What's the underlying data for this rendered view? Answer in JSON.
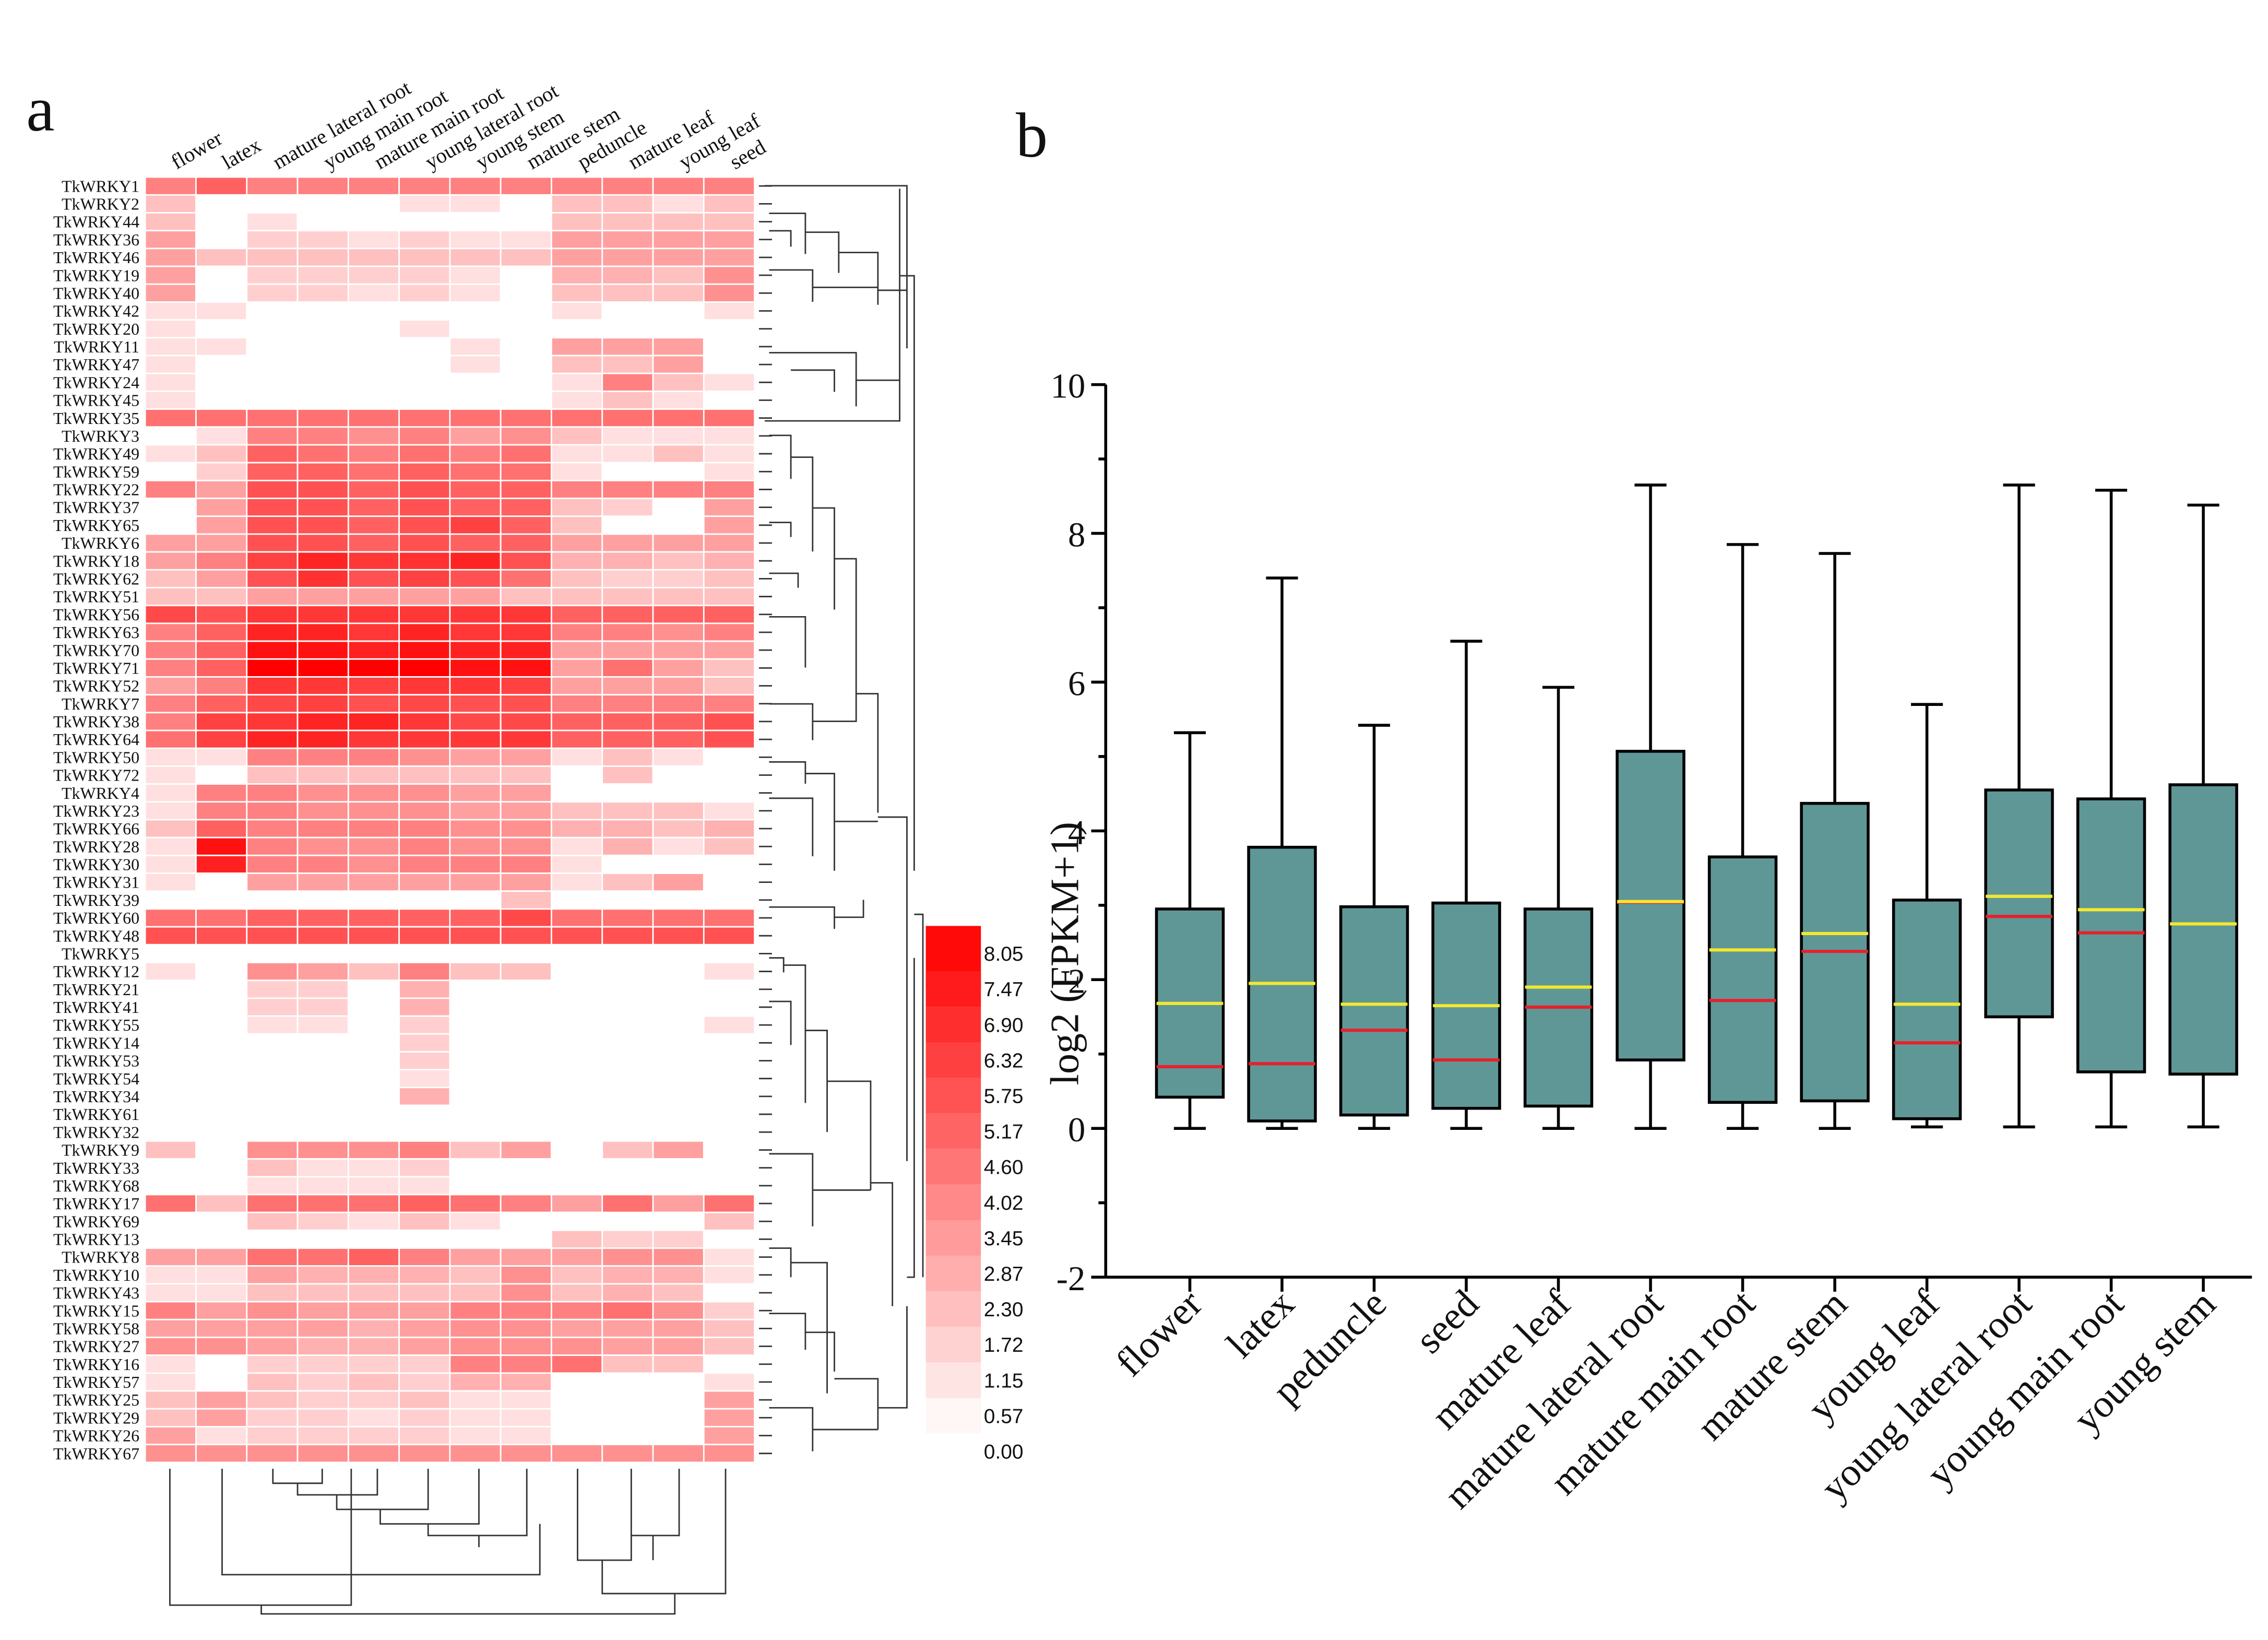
{
  "chart_data": [
    {
      "type": "heatmap",
      "panel_label": "a",
      "x": [
        "flower",
        "latex",
        "mature lateral root",
        "young main root",
        "mature main root",
        "young lateral root",
        "young stem",
        "mature stem",
        "peduncle",
        "mature leaf",
        "young leaf",
        "seed"
      ],
      "y": [
        "TkWRKY1",
        "TkWRKY2",
        "TkWRKY44",
        "TkWRKY36",
        "TkWRKY46",
        "TkWRKY19",
        "TkWRKY40",
        "TkWRKY42",
        "TkWRKY20",
        "TkWRKY11",
        "TkWRKY47",
        "TkWRKY24",
        "TkWRKY45",
        "TkWRKY35",
        "TkWRKY3",
        "TkWRKY49",
        "TkWRKY59",
        "TkWRKY22",
        "TkWRKY37",
        "TkWRKY65",
        "TkWRKY6",
        "TkWRKY18",
        "TkWRKY62",
        "TkWRKY51",
        "TkWRKY56",
        "TkWRKY63",
        "TkWRKY70",
        "TkWRKY71",
        "TkWRKY52",
        "TkWRKY7",
        "TkWRKY38",
        "TkWRKY64",
        "TkWRKY50",
        "TkWRKY72",
        "TkWRKY4",
        "TkWRKY23",
        "TkWRKY66",
        "TkWRKY28",
        "TkWRKY30",
        "TkWRKY31",
        "TkWRKY39",
        "TkWRKY60",
        "TkWRKY48",
        "TkWRKY5",
        "TkWRKY12",
        "TkWRKY21",
        "TkWRKY41",
        "TkWRKY55",
        "TkWRKY14",
        "TkWRKY53",
        "TkWRKY54",
        "TkWRKY34",
        "TkWRKY61",
        "TkWRKY32",
        "TkWRKY9",
        "TkWRKY33",
        "TkWRKY68",
        "TkWRKY17",
        "TkWRKY69",
        "TkWRKY13",
        "TkWRKY8",
        "TkWRKY10",
        "TkWRKY43",
        "TkWRKY15",
        "TkWRKY58",
        "TkWRKY27",
        "TkWRKY16",
        "TkWRKY57",
        "TkWRKY25",
        "TkWRKY29",
        "TkWRKY26",
        "TkWRKY67"
      ],
      "values": [
        [
          4,
          5,
          4,
          4,
          4,
          4,
          4,
          4,
          4,
          4,
          4,
          4
        ],
        [
          2,
          0,
          0,
          0,
          0,
          1,
          1,
          0,
          2,
          2,
          1,
          2
        ],
        [
          2,
          0,
          1,
          0,
          0,
          0,
          0,
          0,
          2,
          2,
          2,
          2
        ],
        [
          3,
          0,
          1.5,
          1.5,
          1,
          1.5,
          1,
          1,
          3,
          3,
          3,
          3
        ],
        [
          3,
          2,
          2,
          2,
          2,
          2,
          2,
          2,
          3,
          3,
          3,
          3
        ],
        [
          3,
          0,
          1.5,
          1.5,
          1.5,
          1.5,
          1,
          0,
          2.5,
          2.5,
          2,
          3.5
        ],
        [
          3,
          0,
          1.5,
          1.5,
          1,
          1.5,
          1,
          0,
          2,
          2,
          2,
          3.5
        ],
        [
          1,
          1,
          0,
          0,
          0,
          0,
          0,
          0,
          1,
          0,
          0,
          1
        ],
        [
          1,
          0,
          0,
          0,
          0,
          1,
          0,
          0,
          0,
          0,
          0,
          0
        ],
        [
          1,
          1,
          0,
          0,
          0,
          0,
          1,
          0,
          3,
          3,
          3,
          0
        ],
        [
          1,
          0,
          0,
          0,
          0,
          0,
          1,
          0,
          2,
          2,
          3,
          0
        ],
        [
          1,
          0,
          0,
          0,
          0,
          0,
          0,
          0,
          1,
          4,
          2,
          1
        ],
        [
          1,
          0,
          0,
          0,
          0,
          0,
          0,
          0,
          1,
          2,
          1,
          0
        ],
        [
          4.5,
          4.5,
          4.5,
          4.5,
          4.5,
          4.5,
          4.5,
          4.5,
          4.5,
          4.5,
          4.5,
          4.5
        ],
        [
          0,
          1,
          4,
          4,
          3.5,
          4,
          3,
          3.5,
          2,
          1,
          1,
          1
        ],
        [
          1,
          2,
          5,
          4.5,
          4,
          4.5,
          4,
          4.5,
          1,
          1,
          2,
          1
        ],
        [
          0,
          1.5,
          5,
          5,
          4.5,
          5,
          4.5,
          4.5,
          1,
          0,
          0,
          1
        ],
        [
          4,
          3,
          5.5,
          5.5,
          5,
          5.5,
          5,
          5,
          4,
          4,
          4,
          4
        ],
        [
          0,
          3,
          5.5,
          5.5,
          5,
          5.5,
          5,
          5,
          2,
          1.5,
          0,
          3
        ],
        [
          0,
          3,
          5.5,
          5.5,
          5,
          5.5,
          6,
          5,
          2,
          0,
          0,
          3
        ],
        [
          3,
          3,
          5.5,
          5.5,
          5,
          5.5,
          5,
          5,
          3,
          3,
          3,
          3
        ],
        [
          3,
          4,
          6,
          6.9,
          6.3,
          6.5,
          6.9,
          5.5,
          2.5,
          2.5,
          2,
          2.5
        ],
        [
          2,
          3,
          5.5,
          6.5,
          5.5,
          6,
          5.5,
          4.5,
          2,
          1.5,
          1.5,
          2
        ],
        [
          2,
          2,
          3,
          3,
          3,
          3,
          3,
          2,
          2,
          2,
          2,
          2
        ],
        [
          5.75,
          5.5,
          6.3,
          6.3,
          6.3,
          6.3,
          6.3,
          6.3,
          5,
          5,
          5,
          5
        ],
        [
          4,
          5,
          6.9,
          6.9,
          6.3,
          6.9,
          6.3,
          6.3,
          4,
          4,
          3.5,
          4
        ],
        [
          4,
          5,
          7.5,
          7.5,
          7,
          7.5,
          7,
          7,
          3,
          3,
          3,
          3
        ],
        [
          4,
          5,
          8.05,
          8.05,
          8.05,
          8.05,
          7.5,
          7.5,
          3,
          4.5,
          3,
          2
        ],
        [
          3,
          4,
          6.3,
          6.3,
          6,
          6.3,
          6.3,
          6,
          3,
          3,
          3,
          2
        ],
        [
          4,
          5,
          5.75,
          6,
          5.5,
          5.75,
          5.5,
          5.5,
          4,
          4,
          4,
          4
        ],
        [
          4,
          6,
          6.3,
          6.9,
          6.9,
          6.3,
          5.75,
          5.75,
          5,
          5,
          5,
          5.5
        ],
        [
          4.5,
          6,
          6.9,
          6.9,
          6.3,
          6.3,
          6.3,
          6.3,
          5,
          5,
          5,
          5.5
        ],
        [
          1,
          1,
          4,
          4,
          4,
          3.5,
          3,
          3,
          1,
          2,
          1,
          0
        ],
        [
          1,
          0,
          2,
          2,
          2,
          2,
          2,
          2,
          0,
          2,
          0,
          0
        ],
        [
          1,
          4,
          4,
          3.5,
          3.5,
          3.5,
          3,
          3,
          0,
          0,
          0,
          0
        ],
        [
          1,
          4,
          4,
          3.5,
          3.5,
          3.5,
          3,
          3,
          2,
          2,
          2,
          1
        ],
        [
          2,
          5,
          4,
          4,
          4,
          4,
          3.5,
          3.5,
          2.5,
          2.5,
          2,
          2.5
        ],
        [
          1,
          7.5,
          4,
          3.5,
          3.5,
          4,
          3.5,
          3.5,
          1,
          2.5,
          1,
          2
        ],
        [
          1,
          7,
          4,
          4,
          3.5,
          4,
          4,
          4,
          1,
          0,
          0,
          0
        ],
        [
          1,
          0,
          3,
          3,
          3,
          3,
          3,
          3,
          1,
          2,
          3,
          0
        ],
        [
          0,
          0,
          0,
          0,
          0,
          0,
          0,
          2,
          0,
          0,
          0,
          0
        ],
        [
          4.5,
          4.5,
          5,
          5,
          5,
          5,
          5,
          5.75,
          4.5,
          4.5,
          4.5,
          4.5
        ],
        [
          5.5,
          5.5,
          5.5,
          5.5,
          5.5,
          5.5,
          5.5,
          5.5,
          5.5,
          5.5,
          5.5,
          5.5
        ],
        [
          0,
          0,
          0,
          0,
          0,
          0,
          0,
          0,
          0,
          0,
          0,
          0
        ],
        [
          1,
          0,
          3.5,
          3,
          2,
          4,
          2,
          2,
          0,
          0,
          0,
          1
        ],
        [
          0,
          0,
          1.5,
          1.5,
          0,
          2.5,
          0,
          0,
          0,
          0,
          0,
          0
        ],
        [
          0,
          0,
          1.5,
          1.5,
          0,
          2.5,
          0,
          0,
          0,
          0,
          0,
          0
        ],
        [
          0,
          0,
          1,
          1,
          0,
          1.5,
          0,
          0,
          0,
          0,
          0,
          1
        ],
        [
          0,
          0,
          0,
          0,
          0,
          1.5,
          0,
          0,
          0,
          0,
          0,
          0
        ],
        [
          0,
          0,
          0,
          0,
          0,
          1.5,
          0,
          0,
          0,
          0,
          0,
          0
        ],
        [
          0,
          0,
          0,
          0,
          0,
          1,
          0,
          0,
          0,
          0,
          0,
          0
        ],
        [
          0,
          0,
          0,
          0,
          0,
          2.5,
          0,
          0,
          0,
          0,
          0,
          0
        ],
        [
          0,
          0,
          0,
          0,
          0,
          0,
          0,
          0,
          0,
          0,
          0,
          0
        ],
        [
          0,
          0,
          0,
          0,
          0,
          0,
          0,
          0,
          0,
          0,
          0,
          0
        ],
        [
          2,
          0,
          3.5,
          3.5,
          3.5,
          4,
          2,
          3,
          0,
          2,
          3,
          0
        ],
        [
          0,
          0,
          2,
          1,
          1,
          1.5,
          0,
          0,
          0,
          0,
          0,
          0
        ],
        [
          0,
          0,
          1,
          1,
          1,
          1,
          0,
          0,
          0,
          0,
          0,
          0
        ],
        [
          4.5,
          2,
          4.5,
          4.5,
          4.5,
          5,
          4.5,
          4,
          3,
          4.5,
          3,
          4.5
        ],
        [
          0,
          0,
          2,
          1.5,
          1,
          2,
          1,
          0,
          0,
          0,
          0,
          2
        ],
        [
          0,
          0,
          0,
          0,
          0,
          0,
          0,
          0,
          2,
          1.5,
          1.5,
          0
        ],
        [
          3,
          3,
          4.5,
          4.5,
          5,
          4,
          3,
          3,
          3,
          3.5,
          3.5,
          1
        ],
        [
          1,
          1,
          3,
          2.5,
          2.5,
          2.5,
          2,
          3.5,
          2,
          2.5,
          2.5,
          1
        ],
        [
          1,
          1,
          2,
          2,
          2,
          2,
          2,
          3.5,
          2,
          2.5,
          2,
          0
        ],
        [
          4,
          3,
          3.5,
          3,
          3,
          3,
          4,
          4,
          4,
          4.5,
          3.5,
          1.5
        ],
        [
          3,
          3,
          3,
          3,
          2.5,
          3,
          3.5,
          3.5,
          3,
          3,
          3,
          2
        ],
        [
          3.5,
          3.5,
          3,
          2.5,
          2.5,
          3,
          3.5,
          3.5,
          3.5,
          3,
          3,
          2
        ],
        [
          1,
          0,
          1.5,
          1.5,
          1.5,
          1.5,
          4,
          4,
          4.5,
          2,
          2,
          0
        ],
        [
          1,
          0,
          2,
          1.5,
          2,
          1.5,
          2.5,
          2.5,
          0,
          0,
          0,
          1
        ],
        [
          2,
          3,
          2,
          1.5,
          1.5,
          2,
          1,
          1,
          0,
          0,
          0,
          3
        ],
        [
          2,
          3,
          1.5,
          1.5,
          1,
          1.5,
          1,
          1,
          0,
          0,
          0,
          3
        ],
        [
          3,
          1,
          1.5,
          1.5,
          1.5,
          1.5,
          1,
          1,
          0,
          0,
          0,
          3
        ],
        [
          3.5,
          3.5,
          3.5,
          3.5,
          3.5,
          3.5,
          3.5,
          3.5,
          3.5,
          3.5,
          3.5,
          3.5
        ]
      ],
      "zlim": [
        0,
        8.05
      ],
      "colormap": [
        "#ffffff",
        "#ff0000"
      ],
      "colorbar_ticks": [
        8.05,
        7.47,
        {
          "value": 6.9,
          "label": "6.90"
        },
        6.32,
        5.75,
        5.17,
        {
          "value": 4.6,
          "label": "4.60"
        },
        4.02,
        3.45,
        2.87,
        {
          "value": 2.3,
          "label": "2.30"
        },
        1.72,
        1.15,
        0.57,
        {
          "value": 0,
          "label": "0.00"
        }
      ]
    },
    {
      "type": "box",
      "panel_label": "b",
      "ylabel": "log2 (FPKM+1)",
      "categories": [
        "flower",
        "latex",
        "peduncle",
        "seed",
        "mature leaf",
        "mature lateral root",
        "mature main root",
        "mature stem",
        "young leaf",
        "young lateral root",
        "young main root",
        "young stem"
      ],
      "boxes": [
        {
          "min": 0,
          "q1": 0.42,
          "median": 0.83,
          "mean": 1.68,
          "q3": 2.95,
          "max": 5.32
        },
        {
          "min": 0,
          "q1": 0.1,
          "median": 0.87,
          "mean": 1.95,
          "q3": 3.78,
          "max": 7.4
        },
        {
          "min": 0,
          "q1": 0.18,
          "median": 1.32,
          "mean": 1.67,
          "q3": 2.98,
          "max": 5.42
        },
        {
          "min": 0,
          "q1": 0.27,
          "median": 0.92,
          "mean": 1.65,
          "q3": 3.03,
          "max": 6.55
        },
        {
          "min": 0,
          "q1": 0.3,
          "median": 1.63,
          "mean": 1.9,
          "q3": 2.95,
          "max": 5.93
        },
        {
          "min": 0,
          "q1": 0.92,
          "median": 3.04,
          "mean": 3.05,
          "q3": 5.07,
          "max": 8.65
        },
        {
          "min": 0,
          "q1": 0.35,
          "median": 1.72,
          "mean": 2.4,
          "q3": 3.65,
          "max": 7.85
        },
        {
          "min": 0,
          "q1": 0.37,
          "median": 2.38,
          "mean": 2.62,
          "q3": 4.37,
          "max": 7.73
        },
        {
          "min": 0.02,
          "q1": 0.13,
          "median": 1.15,
          "mean": 1.67,
          "q3": 3.07,
          "max": 5.7
        },
        {
          "min": 0.02,
          "q1": 1.5,
          "median": 2.85,
          "mean": 3.12,
          "q3": 4.55,
          "max": 8.65
        },
        {
          "min": 0.02,
          "q1": 0.76,
          "median": 2.63,
          "mean": 2.94,
          "q3": 4.43,
          "max": 8.58
        },
        {
          "min": 0.02,
          "q1": 0.73,
          "median": 2.75,
          "mean": 2.75,
          "q3": 4.62,
          "max": 8.38
        }
      ],
      "box_color": "#5f9797",
      "median_color": "#e8202a",
      "mean_color": "#f2e830",
      "ylim": [
        -2,
        10
      ],
      "yticks": [
        -2,
        0,
        2,
        4,
        6,
        8,
        10
      ]
    }
  ]
}
